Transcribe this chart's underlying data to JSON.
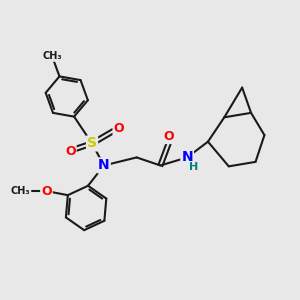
{
  "bg_color": "#e8e8e8",
  "bond_color": "#1a1a1a",
  "bond_width": 1.5,
  "atom_colors": {
    "S": "#cccc00",
    "N": "#0000ff",
    "O": "#ff0000",
    "H": "#008080",
    "C": "#1a1a1a"
  },
  "fig_width": 3.0,
  "fig_height": 3.0,
  "dpi": 100,
  "xlim": [
    0,
    10
  ],
  "ylim": [
    0,
    10
  ]
}
